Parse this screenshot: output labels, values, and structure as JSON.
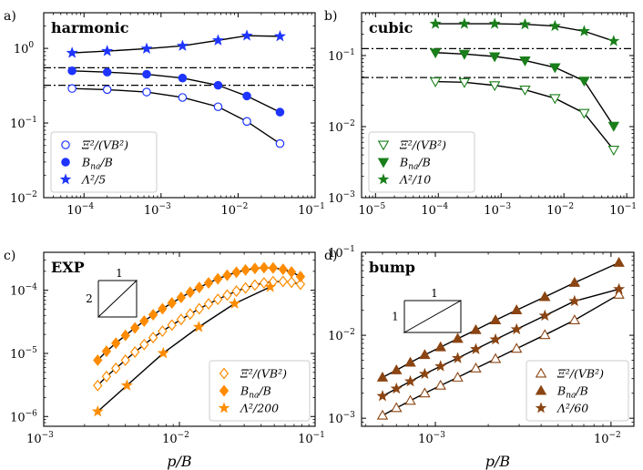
{
  "colors": {
    "harmonic": "#1f35ff",
    "cubic": "#1a7f1a",
    "exp": "#ff8c00",
    "bump": "#8b4513",
    "line": "#000000"
  },
  "chart_data": [
    {
      "id": "a",
      "type": "scatter",
      "panel_label": "a)",
      "title": "harmonic",
      "xlabel": "",
      "ylabel": "",
      "xscale": "log",
      "yscale": "log",
      "xlim": [
        3e-05,
        0.1
      ],
      "ylim": [
        0.01,
        3
      ],
      "xticks": [
        {
          "v": 0.0001,
          "label": "10",
          "exp": "−4"
        },
        {
          "v": 0.001,
          "label": "10",
          "exp": "−3"
        },
        {
          "v": 0.01,
          "label": "10",
          "exp": "−2"
        },
        {
          "v": 0.1,
          "label": "10",
          "exp": "−1"
        }
      ],
      "yticks": [
        {
          "v": 0.01,
          "label": "10",
          "exp": "−2"
        },
        {
          "v": 0.1,
          "label": "10",
          "exp": "−1"
        },
        {
          "v": 1,
          "label": "10",
          "exp": "0"
        }
      ],
      "hlines": [
        0.55,
        0.32
      ],
      "legend_position": "bottom-left",
      "x": [
        7e-05,
        0.0002,
        0.00065,
        0.0019,
        0.0055,
        0.013,
        0.035
      ],
      "series": [
        {
          "name": "Ξ²/(VB²)",
          "marker": "circle",
          "filled": false,
          "values": [
            0.29,
            0.28,
            0.26,
            0.22,
            0.165,
            0.105,
            0.053
          ]
        },
        {
          "name": "B_na/B",
          "marker": "circle",
          "filled": true,
          "values": [
            0.5,
            0.48,
            0.45,
            0.4,
            0.32,
            0.23,
            0.14
          ]
        },
        {
          "name": "Λ²/5",
          "marker": "star",
          "filled": true,
          "values": [
            0.87,
            0.92,
            0.99,
            1.08,
            1.28,
            1.48,
            1.45
          ]
        }
      ]
    },
    {
      "id": "b",
      "type": "scatter",
      "panel_label": "b)",
      "title": "cubic",
      "xlabel": "",
      "ylabel": "",
      "xscale": "log",
      "yscale": "log",
      "xlim": [
        6e-06,
        0.13
      ],
      "ylim": [
        0.001,
        0.4
      ],
      "xticks": [
        {
          "v": 1e-05,
          "label": "10",
          "exp": "−5"
        },
        {
          "v": 0.0001,
          "label": "10",
          "exp": "−4"
        },
        {
          "v": 0.001,
          "label": "10",
          "exp": "−3"
        },
        {
          "v": 0.01,
          "label": "10",
          "exp": "−2"
        },
        {
          "v": 0.1,
          "label": "10",
          "exp": "−1"
        }
      ],
      "yticks": [
        {
          "v": 0.001,
          "label": "10",
          "exp": "−3"
        },
        {
          "v": 0.01,
          "label": "10",
          "exp": "−2"
        },
        {
          "v": 0.1,
          "label": "10",
          "exp": "−1"
        }
      ],
      "hlines": [
        0.125,
        0.049
      ],
      "legend_position": "bottom-left",
      "x": [
        9e-05,
        0.00026,
        0.00079,
        0.0024,
        0.0072,
        0.021,
        0.062
      ],
      "series": [
        {
          "name": "Ξ²/(VB²)",
          "marker": "triangle-down",
          "filled": false,
          "values": [
            0.043,
            0.042,
            0.038,
            0.033,
            0.025,
            0.0155,
            0.0047
          ]
        },
        {
          "name": "B_na/B",
          "marker": "triangle-down",
          "filled": true,
          "values": [
            0.11,
            0.105,
            0.097,
            0.085,
            0.068,
            0.044,
            0.0102
          ]
        },
        {
          "name": "Λ²/10",
          "marker": "star",
          "filled": true,
          "values": [
            0.28,
            0.28,
            0.28,
            0.275,
            0.26,
            0.22,
            0.16
          ]
        }
      ]
    },
    {
      "id": "c",
      "type": "scatter",
      "panel_label": "c)",
      "title": "EXP",
      "xlabel": "p/B",
      "ylabel": "",
      "xscale": "log",
      "yscale": "log",
      "xlim": [
        0.001,
        0.1
      ],
      "ylim": [
        7e-07,
        0.0004
      ],
      "xticks": [
        {
          "v": 0.001,
          "label": "10",
          "exp": "−3"
        },
        {
          "v": 0.01,
          "label": "10",
          "exp": "−2"
        },
        {
          "v": 0.1,
          "label": "10",
          "exp": "−1"
        }
      ],
      "yticks": [
        {
          "v": 1e-06,
          "label": "10",
          "exp": "−6"
        },
        {
          "v": 1e-05,
          "label": "10",
          "exp": "−5"
        },
        {
          "v": 0.0001,
          "label": "10",
          "exp": "−4"
        }
      ],
      "slope_triangle": {
        "run_label": "1",
        "rise_label": "2"
      },
      "legend_position": "bottom-right",
      "x": [
        0.0025,
        0.0029,
        0.0034,
        0.004,
        0.0047,
        0.0055,
        0.0064,
        0.0075,
        0.0088,
        0.0103,
        0.012,
        0.014,
        0.0164,
        0.0192,
        0.0225,
        0.0263,
        0.0307,
        0.036,
        0.042,
        0.049,
        0.058,
        0.067,
        0.078
      ],
      "series": [
        {
          "name": "Ξ²/(VB²)",
          "marker": "diamond",
          "filled": false,
          "values": [
            3.1e-06,
            4.3e-06,
            5.8e-06,
            7.8e-06,
            1.05e-05,
            1.38e-05,
            1.78e-05,
            2.25e-05,
            2.81e-05,
            3.45e-05,
            4.2e-05,
            5.1e-05,
            6.1e-05,
            7.2e-05,
            8.4e-05,
            9.7e-05,
            0.000109,
            0.000121,
            0.000131,
            0.000137,
            0.000138,
            0.000134,
            0.000125
          ]
        },
        {
          "name": "B_na/B",
          "marker": "diamond",
          "filled": true,
          "values": [
            7.8e-06,
            1.08e-05,
            1.45e-05,
            1.93e-05,
            2.53e-05,
            3.25e-05,
            4.1e-05,
            5.1e-05,
            6.3e-05,
            7.7e-05,
            9.3e-05,
            0.000111,
            0.000131,
            0.000152,
            0.000173,
            0.000193,
            0.00021,
            0.000222,
            0.000228,
            0.000226,
            0.000215,
            0.000195,
            0.000165
          ]
        },
        {
          "name": "Λ²/200",
          "marker": "star",
          "filled": true,
          "sparse": true,
          "x": [
            0.0025,
            0.0041,
            0.0076,
            0.0139,
            0.0255,
            0.0467
          ],
          "values": [
            1.2e-06,
            3.1e-06,
            1.01e-05,
            2.62e-05,
            6.15e-05,
            0.000113
          ]
        }
      ]
    },
    {
      "id": "d",
      "type": "scatter",
      "panel_label": "d)",
      "title": "bump",
      "xlabel": "p/B",
      "ylabel": "",
      "xscale": "log",
      "yscale": "log",
      "xlim": [
        0.00038,
        0.0135
      ],
      "ylim": [
        0.0008,
        0.1
      ],
      "xticks": [
        {
          "v": 0.001,
          "label": "10",
          "exp": "−3"
        },
        {
          "v": 0.01,
          "label": "10",
          "exp": "−2"
        }
      ],
      "yticks": [
        {
          "v": 0.001,
          "label": "10",
          "exp": "−3"
        },
        {
          "v": 0.01,
          "label": "10",
          "exp": "−2"
        },
        {
          "v": 0.1,
          "label": "10",
          "exp": "−1"
        }
      ],
      "slope_triangle": {
        "run_label": "1",
        "rise_label": "1"
      },
      "legend_position": "bottom-right",
      "x": [
        0.0005,
        0.0006,
        0.00072,
        0.00087,
        0.00107,
        0.00134,
        0.0017,
        0.0022,
        0.0029,
        0.0042,
        0.0062,
        0.0111
      ],
      "series": [
        {
          "name": "Ξ²/(VB²)",
          "marker": "triangle-up",
          "filled": false,
          "values": [
            0.00108,
            0.00133,
            0.00163,
            0.002,
            0.00248,
            0.0031,
            0.004,
            0.0052,
            0.0069,
            0.0101,
            0.0152,
            0.031
          ]
        },
        {
          "name": "B_na/B",
          "marker": "triangle-up",
          "filled": true,
          "values": [
            0.0031,
            0.0038,
            0.0047,
            0.0058,
            0.0072,
            0.0091,
            0.0116,
            0.0152,
            0.0201,
            0.029,
            0.043,
            0.075
          ]
        },
        {
          "name": "Λ²/60",
          "marker": "star",
          "filled": true,
          "values": [
            0.00185,
            0.00227,
            0.00278,
            0.00342,
            0.00423,
            0.0053,
            0.0068,
            0.0089,
            0.0118,
            0.0172,
            0.0258,
            0.036
          ]
        }
      ]
    }
  ]
}
